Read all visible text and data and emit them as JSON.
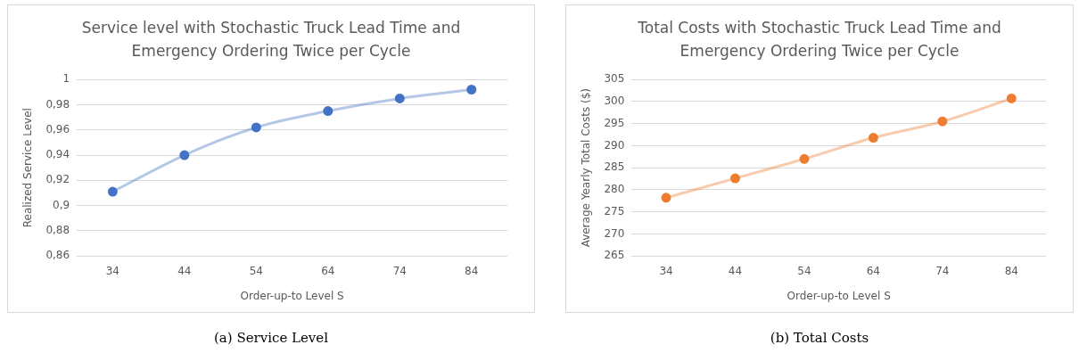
{
  "chart_data": [
    {
      "type": "line",
      "title": "Service level with Stochastic Truck Lead Time and Emergency Ordering Twice per Cycle",
      "xlabel": "Order-up-to Level S",
      "ylabel": "Realized Service Level",
      "categories": [
        "34",
        "44",
        "54",
        "64",
        "74",
        "84"
      ],
      "series": [
        {
          "color": "#4472c4",
          "values": [
            0.911,
            0.94,
            0.962,
            0.975,
            0.985,
            0.992
          ]
        }
      ],
      "ylim": [
        0.86,
        1
      ],
      "yticks": [
        {
          "value": 0.86,
          "label": "0,86"
        },
        {
          "value": 0.88,
          "label": "0,88"
        },
        {
          "value": 0.9,
          "label": "0,9"
        },
        {
          "value": 0.92,
          "label": "0,92"
        },
        {
          "value": 0.94,
          "label": "0,94"
        },
        {
          "value": 0.96,
          "label": "0,96"
        },
        {
          "value": 0.98,
          "label": "0,98"
        },
        {
          "value": 1,
          "label": "1"
        }
      ],
      "grid": "y",
      "legend": false,
      "marker": "circle",
      "line_style": "solid",
      "annotations": [
        "(a) Service Level"
      ]
    },
    {
      "type": "line",
      "title": "Total Costs with Stochastic Truck Lead Time and Emergency Ordering Twice per Cycle",
      "xlabel": "Order-up-to Level S",
      "ylabel": "Average Yearly Total Costs ($)",
      "categories": [
        "34",
        "44",
        "54",
        "64",
        "74",
        "84"
      ],
      "series": [
        {
          "color": "#ed7d31",
          "values": [
            278.2,
            282.6,
            287.0,
            291.8,
            295.5,
            300.7
          ]
        }
      ],
      "ylim": [
        265,
        305
      ],
      "yticks": [
        265,
        270,
        275,
        280,
        285,
        290,
        295,
        300,
        305
      ],
      "grid": "y",
      "legend": false,
      "marker": "circle",
      "line_style": "solid",
      "annotations": [
        "(b) Total Costs"
      ]
    }
  ]
}
